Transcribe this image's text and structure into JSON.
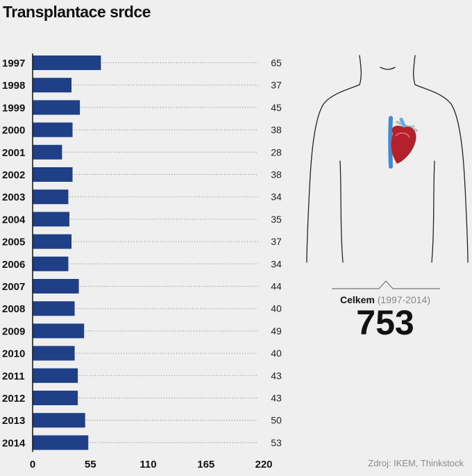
{
  "title": "Transplantace srdce",
  "chart_data": {
    "type": "bar",
    "orientation": "horizontal",
    "categories": [
      "1997",
      "1998",
      "1999",
      "2000",
      "2001",
      "2002",
      "2003",
      "2004",
      "2005",
      "2006",
      "2007",
      "2008",
      "2009",
      "2010",
      "2011",
      "2012",
      "2013",
      "2014"
    ],
    "values": [
      65,
      37,
      45,
      38,
      28,
      38,
      34,
      35,
      37,
      34,
      44,
      40,
      49,
      40,
      43,
      43,
      50,
      53
    ],
    "xlim": [
      0,
      220
    ],
    "xticks": [
      "0",
      "55",
      "110",
      "165",
      "220"
    ],
    "bar_color": "#1f3f86"
  },
  "total": {
    "label": "Celkem",
    "period": "(1997-2014)",
    "value": "753"
  },
  "source": "Zdroj: IKEM, Thinkstock",
  "icons": {
    "figure": "human-torso-outline-icon",
    "heart": "heart-icon"
  }
}
